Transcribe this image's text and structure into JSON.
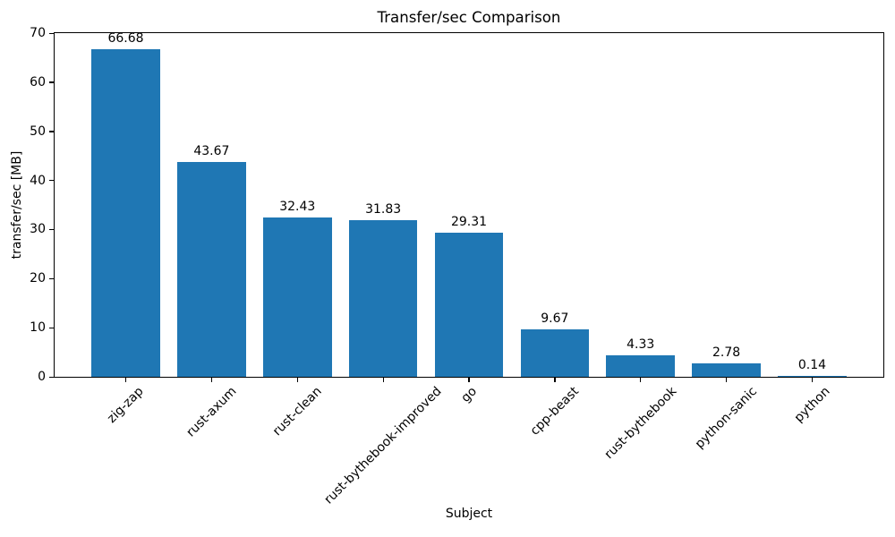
{
  "figure": {
    "background": "#ffffff"
  },
  "chart_data": {
    "type": "bar",
    "title": "Transfer/sec Comparison",
    "xlabel": "Subject",
    "ylabel": "transfer/sec [MB]",
    "categories": [
      "zig-zap",
      "rust-axum",
      "rust-clean",
      "rust-bythebook-improved",
      "go",
      "cpp-beast",
      "rust-bythebook",
      "python-sanic",
      "python"
    ],
    "values": [
      66.68,
      43.67,
      32.43,
      31.83,
      29.31,
      9.67,
      4.33,
      2.78,
      0.14
    ],
    "value_labels": [
      "66.68",
      "43.67",
      "32.43",
      "31.83",
      "29.31",
      "9.67",
      "4.33",
      "2.78",
      "0.14"
    ],
    "ylim": [
      0,
      70
    ],
    "yticks": [
      0,
      10,
      20,
      30,
      40,
      50,
      60,
      70
    ],
    "bar_color": "#1f77b4",
    "grid": false,
    "legend": null,
    "x_tick_rotation_deg": 45,
    "bar_width_fraction": 0.8
  }
}
